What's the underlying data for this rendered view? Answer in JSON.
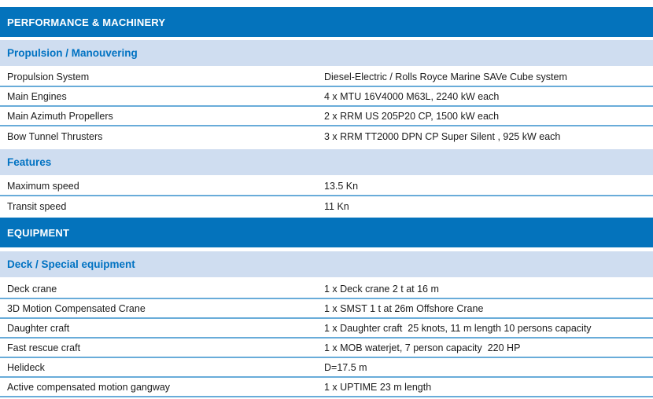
{
  "colors": {
    "header_bg": "#0473BC",
    "header_text": "#FFFFFF",
    "band_bg": "#CFDDF0",
    "band_text": "#0072C2",
    "row_separator": "#69ACD9",
    "row_text": "#1B1B1B"
  },
  "sections": {
    "performance_title": "PERFORMANCE & MACHINERY",
    "equipment_title": "EQUIPMENT"
  },
  "groups": {
    "propulsion": {
      "title": "Propulsion / Manouvering",
      "rows": [
        {
          "label": "Propulsion System",
          "value": "Diesel-Electric / Rolls Royce Marine SAVe Cube system"
        },
        {
          "label": "Main Engines",
          "value": "4 x MTU 16V4000 M63L, 2240 kW each"
        },
        {
          "label": "Main Azimuth Propellers",
          "value": "2 x RRM US 205P20 CP, 1500 kW each"
        },
        {
          "label": "Bow Tunnel Thrusters",
          "value": "3 x RRM TT2000 DPN CP Super Silent , 925 kW each"
        }
      ]
    },
    "features": {
      "title": "Features",
      "rows": [
        {
          "label": "Maximum speed",
          "value": "13.5 Kn"
        },
        {
          "label": "Transit speed",
          "value": "11 Kn"
        }
      ]
    },
    "deck": {
      "title": "Deck / Special equipment",
      "rows": [
        {
          "label": "Deck crane",
          "value": "1 x Deck crane 2 t at 16 m"
        },
        {
          "label": "3D Motion Compensated Crane",
          "value": "1 x SMST 1 t at 26m Offshore Crane"
        },
        {
          "label": "Daughter craft",
          "value": "1 x Daughter craft  25 knots, 11 m length 10 persons capacity"
        },
        {
          "label": "Fast rescue craft",
          "value": "1 x MOB waterjet, 7 person capacity  220 HP"
        },
        {
          "label": "Helideck",
          "value": "D=17.5 m"
        },
        {
          "label": "Active compensated motion gangway",
          "value": "1 x UPTIME 23 m length"
        }
      ]
    }
  }
}
